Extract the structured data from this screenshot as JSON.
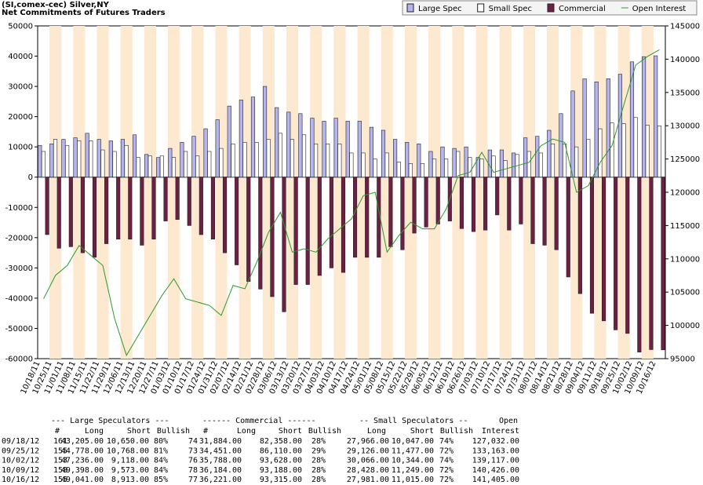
{
  "chart_data": {
    "type": "bar",
    "title": "(SI,comex-cec) Silver,NY",
    "subtitle": "Net Commitments of Futures Traders",
    "categories": [
      "10/18/11",
      "10/25/11",
      "11/01/11",
      "11/08/11",
      "11/15/11",
      "11/22/11",
      "11/29/11",
      "12/06/11",
      "12/13/11",
      "12/20/11",
      "12/27/11",
      "01/03/12",
      "01/10/12",
      "01/17/12",
      "01/24/12",
      "01/31/12",
      "02/07/12",
      "02/14/12",
      "02/21/12",
      "02/28/12",
      "03/06/12",
      "03/13/12",
      "03/20/12",
      "03/27/12",
      "04/03/12",
      "04/10/12",
      "04/17/12",
      "04/24/12",
      "05/01/12",
      "05/08/12",
      "05/15/12",
      "05/22/12",
      "05/29/12",
      "06/05/12",
      "06/12/12",
      "06/19/12",
      "06/26/12",
      "07/03/12",
      "07/10/12",
      "07/17/12",
      "07/24/12",
      "07/31/12",
      "08/07/12",
      "08/14/12",
      "08/21/12",
      "08/28/12",
      "09/04/12",
      "09/11/12",
      "09/18/12",
      "09/25/12",
      "10/02/12",
      "10/09/12",
      "10/16/12"
    ],
    "series": [
      {
        "name": "Large Spec",
        "color": "#b4b4f0",
        "values": [
          10500,
          11000,
          12500,
          13000,
          14500,
          12500,
          12000,
          12500,
          14000,
          7500,
          6500,
          9500,
          11500,
          13500,
          16000,
          19000,
          23500,
          25500,
          26500,
          30000,
          23000,
          21500,
          21000,
          19500,
          18500,
          19500,
          18500,
          18500,
          16500,
          15500,
          12500,
          11500,
          11000,
          8500,
          10000,
          9500,
          10000,
          6500,
          9000,
          9000,
          8000,
          13000,
          13500,
          15500,
          21000,
          28500,
          32500,
          31500,
          32555,
          34010,
          38118,
          39825,
          40128
        ]
      },
      {
        "name": "Small Spec",
        "color": "#ffffff",
        "values": [
          8500,
          12500,
          10500,
          12000,
          12000,
          9000,
          8500,
          10500,
          6500,
          7000,
          7000,
          6500,
          8500,
          7000,
          8500,
          9500,
          11000,
          11500,
          11500,
          12500,
          14500,
          12500,
          14000,
          11000,
          11000,
          11000,
          8000,
          8000,
          6000,
          8000,
          5000,
          4500,
          4500,
          6000,
          6000,
          8500,
          6500,
          6000,
          7000,
          5500,
          7500,
          8500,
          8000,
          11000,
          11000,
          10000,
          12500,
          16000,
          17919,
          17649,
          19722,
          17179,
          16966
        ]
      },
      {
        "name": "Commercial",
        "color": "#6e1f45",
        "values": [
          -19000,
          -23500,
          -23000,
          -25000,
          -26500,
          -22000,
          -20500,
          -20500,
          -22500,
          -20500,
          -14500,
          -14000,
          -16000,
          -19000,
          -20500,
          -25000,
          -29000,
          -34500,
          -37000,
          -39500,
          -44500,
          -35500,
          -35500,
          -32500,
          -30000,
          -31500,
          -26500,
          -26500,
          -26500,
          -23000,
          -24000,
          -18500,
          -16500,
          -15500,
          -14500,
          -17000,
          -18000,
          -17500,
          -12500,
          -17500,
          -15500,
          -22000,
          -22500,
          -24000,
          -33000,
          -38500,
          -45000,
          -47500,
          -50474,
          -51659,
          -57840,
          -57004,
          -57094
        ]
      },
      {
        "name": "Open Interest",
        "color": "#2a9a2a",
        "axis": "y2",
        "values": [
          104000,
          107500,
          109000,
          112000,
          110500,
          109000,
          101000,
          95500,
          98500,
          101500,
          104500,
          107000,
          104000,
          103500,
          103000,
          101500,
          106000,
          105500,
          109500,
          114000,
          117000,
          111000,
          111500,
          111000,
          113000,
          114500,
          116000,
          119500,
          120000,
          111000,
          113500,
          115500,
          114500,
          114500,
          117500,
          122500,
          123000,
          126000,
          123000,
          123500,
          124000,
          124500,
          127000,
          128000,
          127500,
          120000,
          121000,
          124500,
          127032,
          133163,
          139117,
          140426,
          141405
        ]
      }
    ],
    "ylim": [
      -60000,
      50000
    ],
    "yticks": [
      50000,
      40000,
      30000,
      20000,
      10000,
      0,
      -10000,
      -20000,
      -30000,
      -40000,
      -50000,
      -60000
    ],
    "y2lim": [
      95000,
      145000
    ],
    "y2ticks": [
      145000,
      140000,
      135000,
      130000,
      125000,
      120000,
      115000,
      110000,
      105000,
      100000,
      95000
    ],
    "legend": "top-right",
    "band_color": "#fde8d0"
  },
  "table": {
    "header1": [
      "--- Large Speculators ---",
      "------ Commercial ------",
      "-- Small Speculators --",
      "Open"
    ],
    "header2": [
      "#",
      "Long",
      "Short",
      "Bullish",
      "#",
      "Long",
      "Short",
      "Bullish",
      "Long",
      "Short",
      "Bullish",
      "Interest"
    ],
    "rows": [
      [
        "09/18/12",
        "161",
        "43,205.00",
        "10,650.00",
        "80%",
        "74",
        "31,884.00",
        "82,358.00",
        "28%",
        "27,966.00",
        "10,047.00",
        "74%",
        "127,032.00"
      ],
      [
        "09/25/12",
        "155",
        "44,778.00",
        "10,768.00",
        "81%",
        "73",
        "34,451.00",
        "86,110.00",
        "29%",
        "29,126.00",
        "11,477.00",
        "72%",
        "133,163.00"
      ],
      [
        "10/02/12",
        "153",
        "47,236.00",
        "9,118.00",
        "84%",
        "76",
        "35,788.00",
        "93,628.00",
        "28%",
        "30,066.00",
        "10,344.00",
        "74%",
        "139,117.00"
      ],
      [
        "10/09/12",
        "158",
        "49,398.00",
        "9,573.00",
        "84%",
        "78",
        "36,184.00",
        "93,188.00",
        "28%",
        "28,428.00",
        "11,249.00",
        "72%",
        "140,426.00"
      ],
      [
        "10/16/12",
        "155",
        "49,041.00",
        "8,913.00",
        "85%",
        "77",
        "36,221.00",
        "93,315.00",
        "28%",
        "27,981.00",
        "11,015.00",
        "72%",
        "141,405.00"
      ]
    ]
  }
}
